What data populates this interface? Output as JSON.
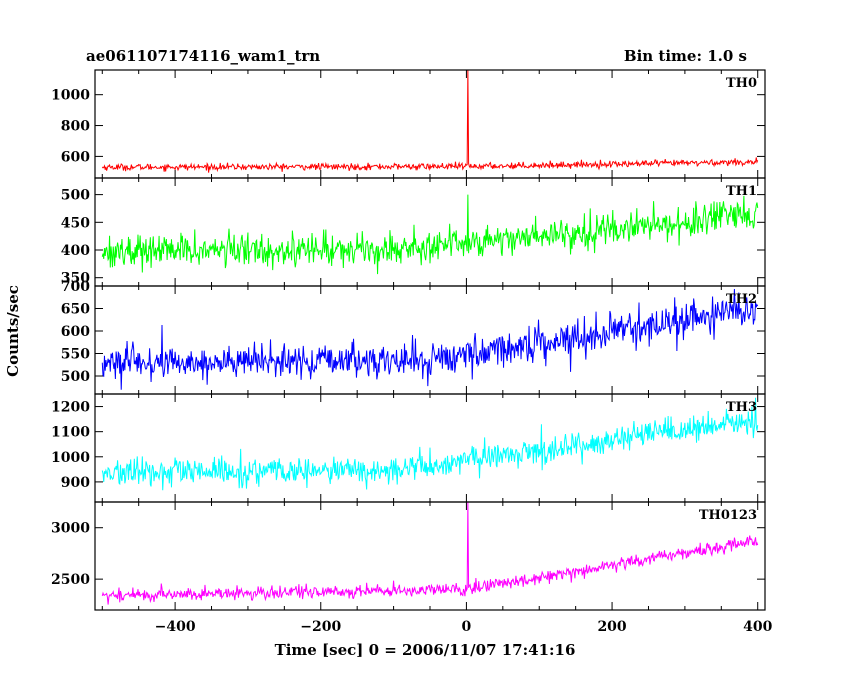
{
  "header": {
    "left_title": "ae061107174116_wam1_trn",
    "right_title": "Bin time: 1.0 s"
  },
  "chart_data": {
    "type": "line",
    "xlabel": "Time [sec] 0 = 2006/11/07 17:41:16",
    "ylabel": "Counts/sec",
    "xlim": [
      -510,
      410
    ],
    "x_ticks": [
      -400,
      -200,
      0,
      200,
      400
    ],
    "x_tick_labels": [
      "−400",
      "−200",
      "0",
      "200",
      "400"
    ],
    "bin_time_s": 1.0,
    "series": [
      {
        "name": "TH0",
        "color": "#ff0000",
        "ylim": [
          460,
          1160
        ],
        "y_ticks": [
          600,
          800,
          1000
        ],
        "y_tick_labels": [
          "600",
          "800",
          "1000"
        ],
        "x_range": [
          -500,
          400
        ],
        "trend": [
          [
            -500,
            530
          ],
          [
            0,
            535
          ],
          [
            400,
            565
          ]
        ],
        "noise_amplitude": 25,
        "spike": {
          "x": 2,
          "y": 1170
        }
      },
      {
        "name": "TH1",
        "color": "#00ff00",
        "ylim": [
          335,
          530
        ],
        "y_ticks": [
          350,
          400,
          450,
          500
        ],
        "y_tick_labels": [
          "350",
          "400",
          "450",
          "500"
        ],
        "x_range": [
          -500,
          400
        ],
        "trend": [
          [
            -500,
            398
          ],
          [
            -100,
            402
          ],
          [
            400,
            462
          ]
        ],
        "noise_amplitude": 35,
        "spike": {
          "x": 2,
          "y": 500
        }
      },
      {
        "name": "TH2",
        "color": "#0000ff",
        "ylim": [
          460,
          700
        ],
        "y_ticks": [
          500,
          550,
          600,
          650,
          700
        ],
        "y_tick_labels": [
          "500",
          "550",
          "600",
          "650",
          "700"
        ],
        "x_range": [
          -500,
          400
        ],
        "trend": [
          [
            -500,
            528
          ],
          [
            -50,
            535
          ],
          [
            400,
            650
          ]
        ],
        "noise_amplitude": 45
      },
      {
        "name": "TH3",
        "color": "#00ffff",
        "ylim": [
          820,
          1250
        ],
        "y_ticks": [
          900,
          1000,
          1100,
          1200
        ],
        "y_tick_labels": [
          "900",
          "1000",
          "1100",
          "1200"
        ],
        "x_range": [
          -500,
          400
        ],
        "trend": [
          [
            -500,
            935
          ],
          [
            -100,
            945
          ],
          [
            400,
            1145
          ]
        ],
        "noise_amplitude": 65
      },
      {
        "name": "TH0123",
        "color": "#ff00ff",
        "ylim": [
          2200,
          3250
        ],
        "y_ticks": [
          2500,
          3000
        ],
        "y_tick_labels": [
          "2500",
          "3000"
        ],
        "x_range": [
          -500,
          400
        ],
        "trend": [
          [
            -500,
            2340
          ],
          [
            0,
            2400
          ],
          [
            400,
            2875
          ]
        ],
        "noise_amplitude": 75,
        "spike": {
          "x": 2,
          "y": 3250
        }
      }
    ]
  }
}
